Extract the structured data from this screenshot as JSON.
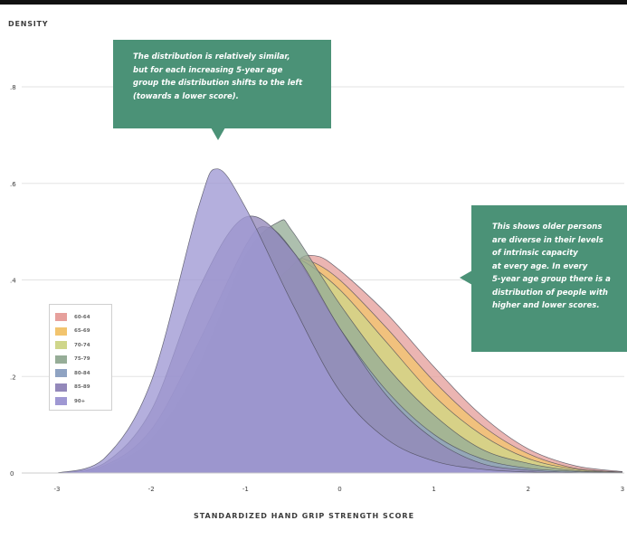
{
  "colors": {
    "background": "#ffffff",
    "callout_fill": "#4b9277",
    "callout_text": "#ffffff",
    "axis_text": "#3d3d3d",
    "gridline": "#e3e3e3"
  },
  "callouts": [
    {
      "lines": [
        "The distribution is relatively similar,",
        "but for each increasing 5-year age",
        "group the distribution shifts to the left",
        "(towards a lower score)."
      ]
    },
    {
      "lines": [
        "This shows older persons",
        "are diverse in their levels",
        "of intrinsic capacity",
        "at every age.  In every",
        "5-year age group there is a",
        "distribution of people with",
        "higher and lower scores."
      ]
    }
  ],
  "chart_data": {
    "type": "area",
    "subtype": "overlapping density curves",
    "title": "",
    "xlabel": "STANDARDIZED HAND GRIP STRENGTH SCORE",
    "ylabel": "DENSITY",
    "xlim": [
      -3,
      3
    ],
    "ylim": [
      0,
      0.8
    ],
    "x_ticks": [
      -3,
      -2,
      -1,
      0,
      1,
      2,
      3
    ],
    "x_tick_labels": [
      "-3",
      "-2",
      "-1",
      "0",
      "1",
      "2",
      "3"
    ],
    "y_ticks": [
      0,
      0.2,
      0.4,
      0.6,
      0.8
    ],
    "y_tick_labels": [
      "0",
      ".2",
      ".4",
      ".6",
      ".8"
    ],
    "grid": true,
    "legend_position": "left, lower-middle",
    "series": [
      {
        "name": "60-64",
        "color": "#e6a09c",
        "peak_x": -0.26,
        "peak_density": 0.45,
        "x": [
          -3,
          -2.5,
          -2,
          -1.5,
          -1,
          -0.5,
          -0.26,
          0,
          0.5,
          1,
          1.5,
          2,
          2.5,
          3
        ],
        "density": [
          0,
          0.01,
          0.05,
          0.14,
          0.3,
          0.43,
          0.45,
          0.42,
          0.33,
          0.22,
          0.12,
          0.05,
          0.015,
          0.003
        ]
      },
      {
        "name": "65-69",
        "color": "#f2c46e",
        "peak_x": -0.33,
        "peak_density": 0.44,
        "x": [
          -3,
          -2.5,
          -2,
          -1.5,
          -1,
          -0.5,
          -0.33,
          0,
          0.5,
          1,
          1.5,
          2,
          2.5,
          3
        ],
        "density": [
          0,
          0.01,
          0.06,
          0.16,
          0.32,
          0.43,
          0.44,
          0.4,
          0.3,
          0.19,
          0.1,
          0.04,
          0.01,
          0.002
        ]
      },
      {
        "name": "70-74",
        "color": "#cfd68a",
        "peak_x": -0.4,
        "peak_density": 0.44,
        "x": [
          -3,
          -2.5,
          -2,
          -1.5,
          -1,
          -0.5,
          -0.4,
          0,
          0.5,
          1,
          1.5,
          2,
          2.5,
          3
        ],
        "density": [
          0,
          0.01,
          0.06,
          0.17,
          0.33,
          0.43,
          0.44,
          0.38,
          0.27,
          0.16,
          0.08,
          0.03,
          0.008,
          0.001
        ]
      },
      {
        "name": "75-79",
        "color": "#96ad97",
        "peak_x": -0.65,
        "peak_density": 0.52,
        "x": [
          -3,
          -2.5,
          -2,
          -1.5,
          -1,
          -0.65,
          -0.5,
          0,
          0.5,
          1,
          1.5,
          2,
          2.5,
          3
        ],
        "density": [
          0,
          0.012,
          0.07,
          0.22,
          0.45,
          0.52,
          0.5,
          0.35,
          0.22,
          0.12,
          0.05,
          0.02,
          0.005,
          0.001
        ]
      },
      {
        "name": "80-84",
        "color": "#8fa3c2",
        "peak_x": -0.78,
        "peak_density": 0.51,
        "x": [
          -3,
          -2.5,
          -2,
          -1.5,
          -1,
          -0.78,
          -0.5,
          0,
          0.5,
          1,
          1.5,
          2,
          2.5,
          3
        ],
        "density": [
          0,
          0.015,
          0.09,
          0.27,
          0.47,
          0.51,
          0.46,
          0.3,
          0.17,
          0.08,
          0.03,
          0.01,
          0.003,
          0
        ]
      },
      {
        "name": "85-89",
        "color": "#9388ba",
        "peak_x": -1.0,
        "peak_density": 0.53,
        "x": [
          -3,
          -2.5,
          -2,
          -1.5,
          -1,
          -0.5,
          0,
          0.5,
          1,
          1.5,
          2,
          2.5,
          3
        ],
        "density": [
          0,
          0.02,
          0.13,
          0.38,
          0.53,
          0.46,
          0.3,
          0.16,
          0.07,
          0.02,
          0.006,
          0.001,
          0
        ]
      },
      {
        "name": "90+",
        "color": "#9f98d3",
        "peak_x": -1.3,
        "peak_density": 0.63,
        "x": [
          -3,
          -2.5,
          -2,
          -1.5,
          -1.3,
          -1,
          -0.5,
          0,
          0.5,
          1,
          1.5,
          2,
          2.5,
          3
        ],
        "density": [
          0,
          0.03,
          0.19,
          0.55,
          0.63,
          0.55,
          0.35,
          0.17,
          0.07,
          0.025,
          0.008,
          0.002,
          0,
          0
        ]
      }
    ]
  }
}
